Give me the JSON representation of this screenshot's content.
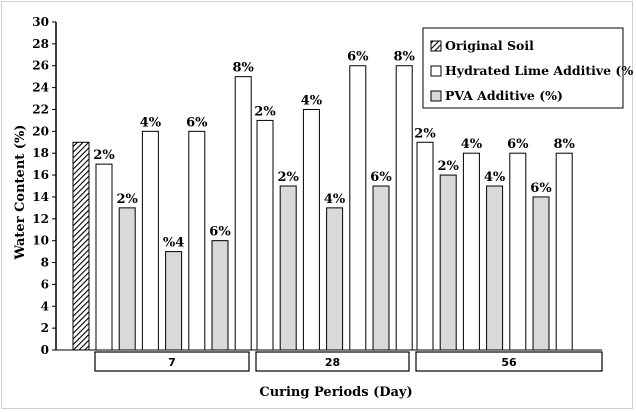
{
  "chart_data": {
    "type": "bar",
    "title": "",
    "xlabel": "Curing Periods (Day)",
    "ylabel": "Water Content (%)",
    "ylim": [
      0,
      30
    ],
    "ytick_step": 2,
    "categories": [
      "7",
      "28",
      "56"
    ],
    "original_soil": {
      "name": "Original Soil",
      "value": 19
    },
    "series": [
      {
        "name": "Hydrated Lime Additive (%)",
        "color": "#ffffff"
      },
      {
        "name": "PVA Additive (%)",
        "color": "#d9d9d9"
      }
    ],
    "legend_position": "top-right",
    "bars": [
      {
        "category": "7",
        "series": "Hydrated Lime Additive (%)",
        "value": 17,
        "label": "2%"
      },
      {
        "category": "7",
        "series": "PVA Additive (%)",
        "value": 13,
        "label": "2%"
      },
      {
        "category": "7",
        "series": "Hydrated Lime Additive (%)",
        "value": 20,
        "label": "4%"
      },
      {
        "category": "7",
        "series": "PVA Additive (%)",
        "value": 9,
        "label": "%4"
      },
      {
        "category": "7",
        "series": "Hydrated Lime Additive (%)",
        "value": 20,
        "label": "6%"
      },
      {
        "category": "7",
        "series": "PVA Additive (%)",
        "value": 10,
        "label": "6%"
      },
      {
        "category": "7",
        "series": "Hydrated Lime Additive (%)",
        "value": 25,
        "label": "8%"
      },
      {
        "category": "28",
        "series": "Hydrated Lime Additive (%)",
        "value": 21,
        "label": "2%"
      },
      {
        "category": "28",
        "series": "PVA Additive (%)",
        "value": 15,
        "label": "2%"
      },
      {
        "category": "28",
        "series": "Hydrated Lime Additive (%)",
        "value": 22,
        "label": "4%"
      },
      {
        "category": "28",
        "series": "PVA Additive (%)",
        "value": 13,
        "label": "4%"
      },
      {
        "category": "28",
        "series": "Hydrated Lime Additive (%)",
        "value": 26,
        "label": "6%"
      },
      {
        "category": "28",
        "series": "PVA Additive (%)",
        "value": 15,
        "label": "6%"
      },
      {
        "category": "28",
        "series": "Hydrated Lime Additive (%)",
        "value": 26,
        "label": "8%"
      },
      {
        "category": "56",
        "series": "Hydrated Lime Additive (%)",
        "value": 19,
        "label": "2%"
      },
      {
        "category": "56",
        "series": "PVA Additive (%)",
        "value": 16,
        "label": "2%"
      },
      {
        "category": "56",
        "series": "Hydrated Lime Additive (%)",
        "value": 18,
        "label": "4%"
      },
      {
        "category": "56",
        "series": "PVA Additive (%)",
        "value": 15,
        "label": "4%"
      },
      {
        "category": "56",
        "series": "Hydrated Lime Additive (%)",
        "value": 18,
        "label": "6%"
      },
      {
        "category": "56",
        "series": "PVA Additive (%)",
        "value": 14,
        "label": "6%"
      },
      {
        "category": "56",
        "series": "Hydrated Lime Additive (%)",
        "value": 18,
        "label": "8%"
      }
    ]
  }
}
